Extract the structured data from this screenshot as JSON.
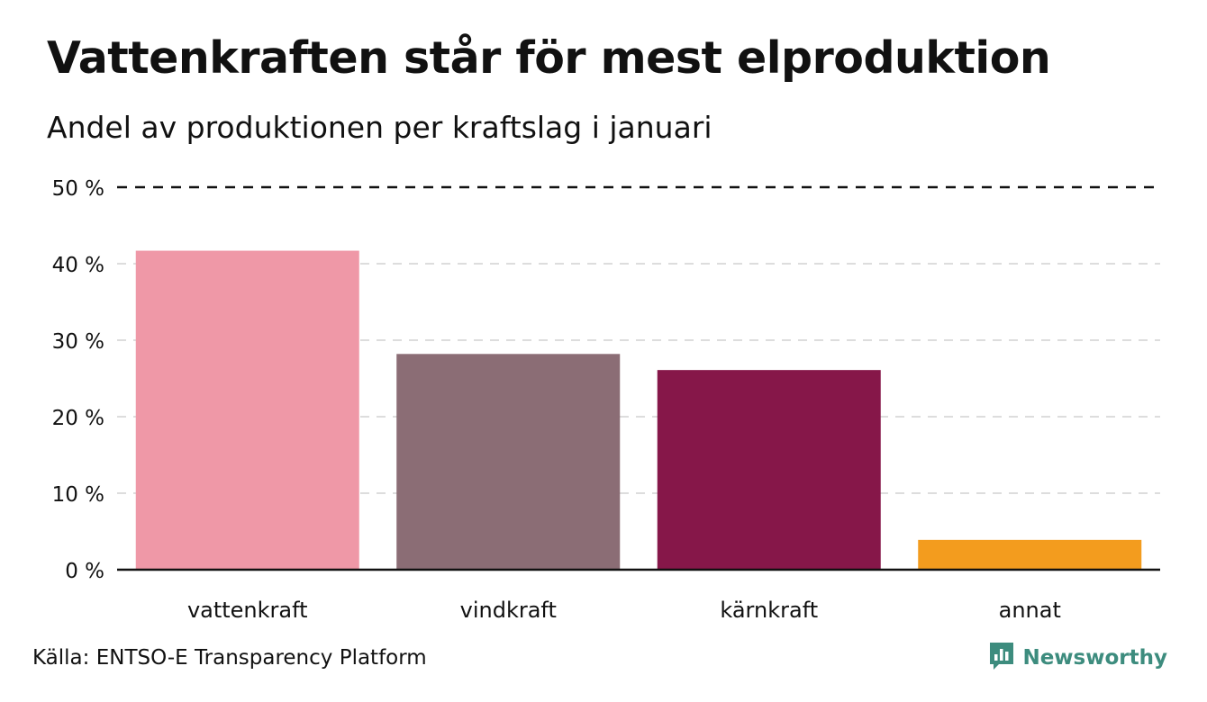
{
  "title": "Vattenkraften står för mest elproduktion",
  "subtitle": "Andel av produktionen per kraftslag i januari",
  "source": "Källa: ENTSO-E Transparency Platform",
  "brand": {
    "name": "Newsworthy",
    "icon": "newsworthy-logo-icon",
    "color": "#3d8c7e"
  },
  "chart_data": {
    "type": "bar",
    "categories": [
      "vattenkraft",
      "vindkraft",
      "kärnkraft",
      "annat"
    ],
    "values": [
      41.7,
      28.2,
      26.1,
      3.9
    ],
    "colors": [
      "#ef98a7",
      "#8b6d75",
      "#861749",
      "#f39c1e"
    ],
    "yticks": [
      0,
      10,
      20,
      30,
      40,
      50
    ],
    "ytick_labels": [
      "0 %",
      "10 %",
      "20 %",
      "30 %",
      "40 %",
      "50 %"
    ],
    "ylim": [
      0,
      50
    ],
    "grid": "dashed horizontal"
  }
}
